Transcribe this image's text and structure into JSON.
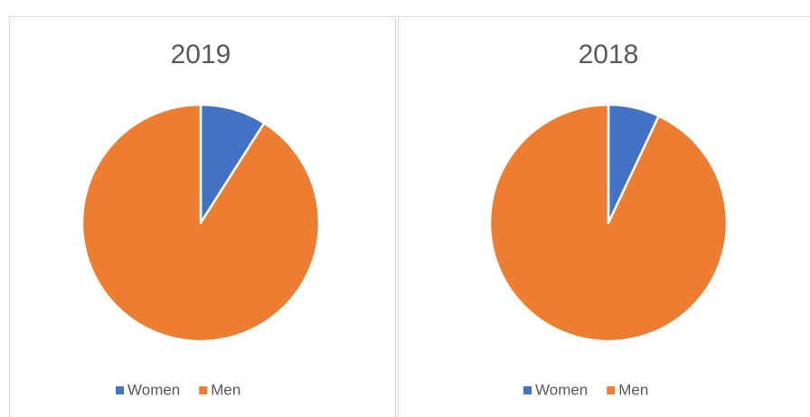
{
  "chart_data": [
    {
      "type": "pie",
      "title": "2019",
      "categories": [
        "Women",
        "Men"
      ],
      "values": [
        9,
        91
      ],
      "colors": [
        "#4472c4",
        "#ed7d31"
      ],
      "legend": "bottom"
    },
    {
      "type": "pie",
      "title": "2018",
      "categories": [
        "Women",
        "Men"
      ],
      "values": [
        7,
        93
      ],
      "colors": [
        "#4472c4",
        "#ed7d31"
      ],
      "legend": "bottom"
    }
  ]
}
